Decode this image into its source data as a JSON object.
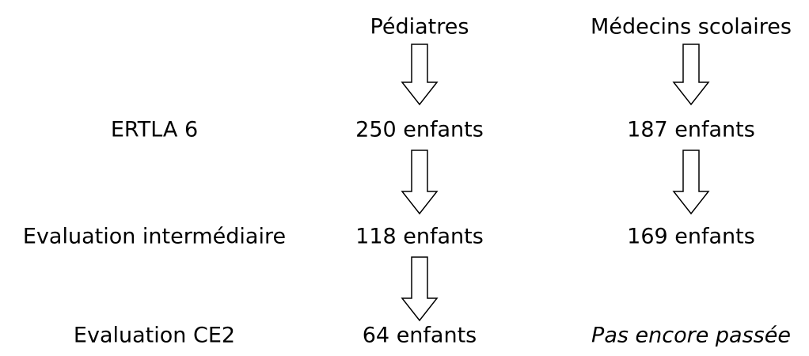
{
  "columns": [
    "Pédiatres",
    "Médecins scolaires"
  ],
  "rows": [
    {
      "label": "ERTLA 6",
      "cells": [
        "250 enfants",
        "187 enfants"
      ]
    },
    {
      "label": "Evaluation intermédiaire",
      "cells": [
        "118 enfants",
        "169 enfants"
      ]
    },
    {
      "label": "Evaluation CE2",
      "cells": [
        "64 enfants",
        "Pas encore passée"
      ]
    }
  ]
}
